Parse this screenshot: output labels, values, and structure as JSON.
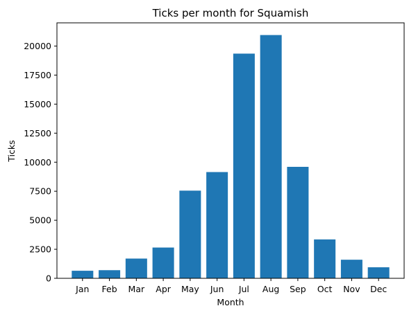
{
  "chart_data": {
    "type": "bar",
    "title": "Ticks per month for Squamish",
    "xlabel": "Month",
    "ylabel": "Ticks",
    "categories": [
      "Jan",
      "Feb",
      "Mar",
      "Apr",
      "May",
      "Jun",
      "Jul",
      "Aug",
      "Sep",
      "Oct",
      "Nov",
      "Dec"
    ],
    "values": [
      650,
      700,
      1700,
      2650,
      7550,
      9150,
      19350,
      20950,
      9600,
      3350,
      1600,
      950
    ],
    "ylim": [
      0,
      22000
    ],
    "yticks": [
      0,
      2500,
      5000,
      7500,
      10000,
      12500,
      15000,
      17500,
      20000
    ],
    "bar_color": "#1f77b4",
    "grid": false,
    "legend": "none"
  }
}
